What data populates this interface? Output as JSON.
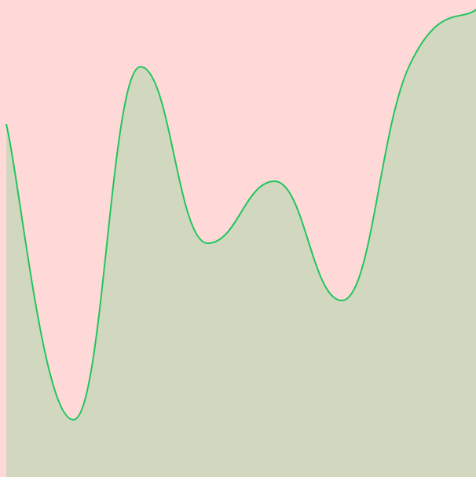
{
  "colors": {
    "background": "#ffd8d8",
    "area_fill": "#d2d8c0",
    "line": "#22c55e"
  },
  "chart_data": {
    "type": "area",
    "title": "",
    "xlabel": "",
    "ylabel": "",
    "grid": false,
    "legend": "none",
    "x": [
      0,
      1,
      2,
      3,
      4,
      5,
      6,
      7
    ],
    "xlim": [
      0,
      7
    ],
    "ylim": [
      0,
      100
    ],
    "series": [
      {
        "values": [
          74,
          12,
          86,
          49,
          62,
          37,
          86,
          98
        ]
      }
    ]
  }
}
